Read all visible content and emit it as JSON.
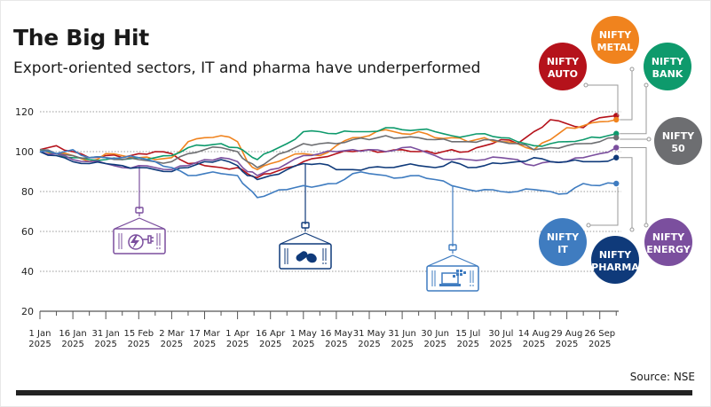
{
  "header": {
    "title": "The Big Hit",
    "subtitle": "Export-oriented sectors, IT and pharma have underperformed"
  },
  "footer": {
    "source": "Source: NSE"
  },
  "icons": [
    {
      "name": "power-plug-crate-icon",
      "series": "NIFTY ENERGY",
      "color": "#7b4f9e"
    },
    {
      "name": "pills-crate-icon",
      "series": "NIFTY PHARMA",
      "color": "#0f3a7a"
    },
    {
      "name": "laptop-crate-icon",
      "series": "NIFTY IT",
      "color": "#3f7cc0"
    }
  ],
  "chart_data": {
    "type": "line",
    "title": "The Big Hit",
    "subtitle": "Export-oriented sectors, IT and pharma have underperformed",
    "xlabel": "",
    "ylabel": "",
    "ylim": [
      20,
      120
    ],
    "yticks": [
      20,
      40,
      60,
      80,
      100,
      120
    ],
    "grid": true,
    "legend": "right (labelled bubbles with connector lines)",
    "x_tick_labels": [
      [
        "1 Jan",
        "2025"
      ],
      [
        "16 Jan",
        "2025"
      ],
      [
        "31 Jan",
        "2025"
      ],
      [
        "15 Feb",
        "2025"
      ],
      [
        "2 Mar",
        "2025"
      ],
      [
        "17 Mar",
        "2025"
      ],
      [
        "1 Apr",
        "2025"
      ],
      [
        "16 Apr",
        "2025"
      ],
      [
        "1 May",
        "2025"
      ],
      [
        "16 May",
        "2025"
      ],
      [
        "31 May",
        "2025"
      ],
      [
        "31 Jun",
        "2025"
      ],
      [
        "30 Jun",
        "2025"
      ],
      [
        "15 Jul",
        "2025"
      ],
      [
        "30 Jul",
        "2025"
      ],
      [
        "14 Aug",
        "2025"
      ],
      [
        "29 Aug",
        "2025"
      ],
      [
        "26 Sep",
        "2025"
      ]
    ],
    "x": [
      0,
      0.5,
      1,
      1.5,
      2,
      2.5,
      3,
      3.5,
      4,
      4.5,
      5,
      5.5,
      6,
      6.3,
      6.6,
      7,
      7.5,
      8,
      8.5,
      9,
      9.5,
      10,
      10.5,
      11,
      11.5,
      12,
      12.5,
      13,
      13.5,
      14,
      14.5,
      15,
      15.5,
      16,
      16.5,
      17,
      17.5
    ],
    "series": [
      {
        "name": "NIFTY AUTO",
        "color": "#b5121b",
        "values": [
          101,
          103,
          100,
          97,
          98,
          97,
          99,
          100,
          99,
          94,
          93,
          92,
          92,
          89,
          87,
          89,
          92,
          95,
          97,
          99,
          100,
          101,
          100,
          101,
          100,
          99,
          101,
          100,
          103,
          106,
          104,
          110,
          116,
          114,
          112,
          117,
          118
        ]
      },
      {
        "name": "NIFTY METAL",
        "color": "#f0831e",
        "values": [
          101,
          99,
          98,
          95,
          99,
          98,
          97,
          96,
          97,
          105,
          107,
          108,
          105,
          95,
          91,
          94,
          97,
          99,
          98,
          103,
          107,
          108,
          111,
          109,
          110,
          107,
          107,
          105,
          107,
          105,
          104,
          101,
          106,
          112,
          113,
          115,
          116
        ]
      },
      {
        "name": "NIFTY BANK",
        "color": "#0e9a6c",
        "values": [
          101,
          99,
          97,
          96,
          96,
          96,
          97,
          97,
          98,
          102,
          103,
          104,
          102,
          99,
          96,
          100,
          104,
          110,
          110,
          109,
          110,
          110,
          112,
          111,
          111,
          110,
          108,
          108,
          109,
          107,
          105,
          103,
          104,
          105,
          106,
          107,
          109
        ]
      },
      {
        "name": "NIFTY 50",
        "color": "#6d6e71",
        "values": [
          101,
          99,
          98,
          97,
          97,
          96,
          96,
          95,
          95,
          99,
          101,
          102,
          100,
          95,
          92,
          96,
          100,
          104,
          104,
          104,
          106,
          106,
          108,
          107,
          107,
          106,
          105,
          105,
          106,
          105,
          104,
          101,
          102,
          103,
          104,
          105,
          107
        ]
      },
      {
        "name": "NIFTY ENERGY",
        "color": "#7b4f9e",
        "values": [
          100,
          99,
          96,
          95,
          94,
          92,
          93,
          92,
          91,
          93,
          96,
          97,
          95,
          90,
          88,
          91,
          94,
          98,
          99,
          100,
          101,
          101,
          100,
          102,
          101,
          98,
          96,
          96,
          96,
          97,
          96,
          93,
          95,
          95,
          97,
          99,
          102
        ]
      },
      {
        "name": "NIFTY PHARMA",
        "color": "#0f3a7a",
        "values": [
          100,
          98,
          95,
          94,
          94,
          93,
          92,
          91,
          90,
          92,
          95,
          96,
          93,
          88,
          86,
          88,
          91,
          94,
          94,
          91,
          91,
          92,
          92,
          93,
          93,
          92,
          95,
          92,
          93,
          94,
          95,
          97,
          95,
          95,
          95,
          95,
          97
        ]
      },
      {
        "name": "NIFTY IT",
        "color": "#3f7cc0",
        "values": [
          100,
          99,
          101,
          97,
          97,
          97,
          97,
          95,
          92,
          88,
          89,
          89,
          88,
          82,
          77,
          79,
          81,
          83,
          83,
          84,
          89,
          89,
          88,
          87,
          88,
          86,
          83,
          81,
          81,
          80,
          80,
          81,
          80,
          79,
          84,
          83,
          84
        ]
      }
    ],
    "end_labels": [
      {
        "series": "NIFTY AUTO",
        "label": [
          "NIFTY",
          "AUTO"
        ]
      },
      {
        "series": "NIFTY METAL",
        "label": [
          "NIFTY",
          "METAL"
        ]
      },
      {
        "series": "NIFTY BANK",
        "label": [
          "NIFTY",
          "BANK"
        ]
      },
      {
        "series": "NIFTY 50",
        "label": [
          "NIFTY",
          "50"
        ]
      },
      {
        "series": "NIFTY IT",
        "label": [
          "NIFTY",
          "IT"
        ]
      },
      {
        "series": "NIFTY PHARMA",
        "label": [
          "NIFTY",
          "PHARMA"
        ]
      },
      {
        "series": "NIFTY ENERGY",
        "label": [
          "NIFTY",
          "ENERGY"
        ]
      }
    ]
  }
}
